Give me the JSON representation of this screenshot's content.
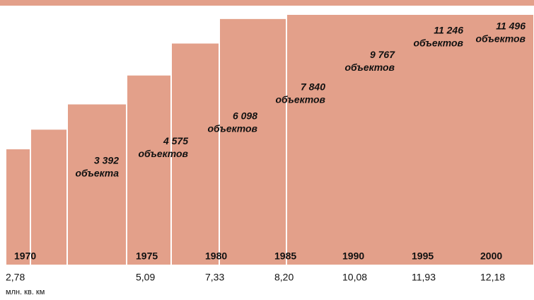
{
  "chart_data": {
    "type": "bar",
    "categories": [
      "1970",
      "1975",
      "1980",
      "1985",
      "1990",
      "1995",
      "2000"
    ],
    "values": [
      3392,
      4575,
      6098,
      7840,
      9767,
      11246,
      11496
    ],
    "value_labels": [
      "3 392",
      "4 575",
      "6 098",
      "7 840",
      "9 767",
      "11 246",
      "11 496"
    ],
    "value_units": [
      "объекта",
      "объектов",
      "объектов",
      "объектов",
      "объектов",
      "объектов",
      "объектов"
    ],
    "area": [
      2.78,
      5.09,
      7.33,
      8.2,
      10.08,
      11.93,
      12.18
    ],
    "area_labels": [
      "2,78",
      "5,09",
      "7,33",
      "8,20",
      "10,08",
      "11,93",
      "12,18"
    ],
    "area_unit": "млн. кв. км",
    "color": "#e3a08a"
  }
}
